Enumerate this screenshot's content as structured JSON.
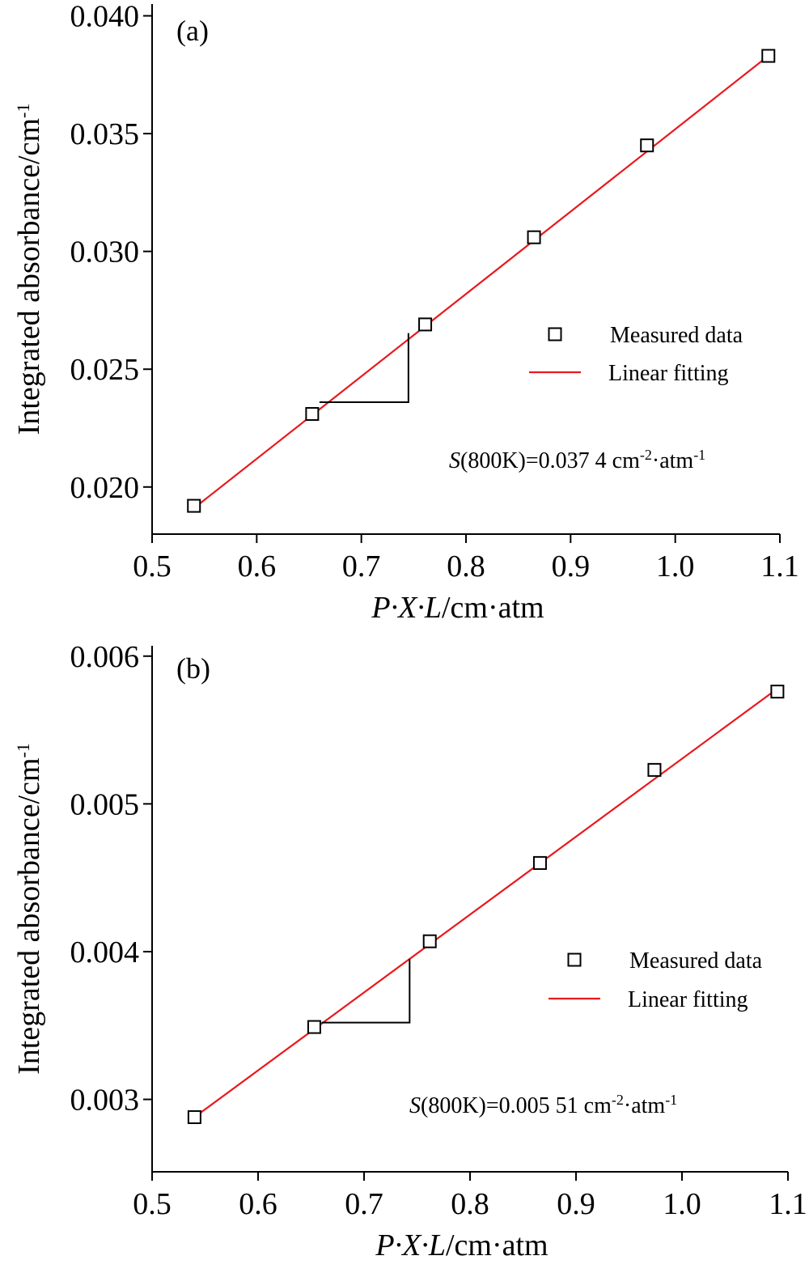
{
  "chart_data": [
    {
      "type": "scatter",
      "panel_label": "(a)",
      "xlabel": {
        "italic": "P·X·L",
        "unit": "/cm·atm"
      },
      "ylabel": {
        "text": "Integrated absorbance/cm",
        "sup": "-1"
      },
      "xlim": [
        0.5,
        1.1
      ],
      "ylim": [
        0.018,
        0.0405
      ],
      "xticks": [
        "0.5",
        "0.6",
        "0.7",
        "0.8",
        "0.9",
        "1.0",
        "1.1"
      ],
      "yticks": [
        "0.020",
        "0.025",
        "0.030",
        "0.035",
        "0.040"
      ],
      "series": [
        {
          "name": "Measured data",
          "marker": "open-square",
          "color": "#000000",
          "x": [
            0.54,
            0.653,
            0.761,
            0.865,
            0.973,
            1.089
          ],
          "y": [
            0.0192,
            0.0231,
            0.0269,
            0.0306,
            0.0345,
            0.0383
          ]
        },
        {
          "name": "Linear fitting",
          "type": "line",
          "color": "#e8191c",
          "x": [
            0.54,
            1.089
          ],
          "y": [
            0.0191,
            0.0383
          ]
        }
      ],
      "slope_triangle": {
        "x1": 0.66,
        "x2": 0.745,
        "y_low": 0.0236,
        "y_high": 0.02653
      },
      "annotation": {
        "italic": "S",
        "text1": "(800K)=0.037 4 cm",
        "sup1": "-2",
        "text2": "·atm",
        "sup2": "-1"
      },
      "legend": {
        "position": "right",
        "entries": [
          "Measured data",
          "Linear fitting"
        ]
      }
    },
    {
      "type": "scatter",
      "panel_label": "(b)",
      "xlabel": {
        "italic": "P·X·L",
        "unit": "/cm·atm"
      },
      "ylabel": {
        "text": "Integrated absorbance/cm",
        "sup": "-1"
      },
      "xlim": [
        0.5,
        1.1
      ],
      "ylim": [
        0.00251,
        0.00607
      ],
      "xticks": [
        "0.5",
        "0.6",
        "0.7",
        "0.8",
        "0.9",
        "1.0",
        "1.1"
      ],
      "yticks": [
        "0.003",
        "0.004",
        "0.005",
        "0.006"
      ],
      "series": [
        {
          "name": "Measured data",
          "marker": "open-square",
          "color": "#000000",
          "x": [
            0.54,
            0.653,
            0.762,
            0.866,
            0.974,
            1.09
          ],
          "y": [
            0.00288,
            0.00349,
            0.00407,
            0.0046,
            0.00523,
            0.00576
          ]
        },
        {
          "name": "Linear fitting",
          "type": "line",
          "color": "#e8191c",
          "x": [
            0.54,
            1.09
          ],
          "y": [
            0.00288,
            0.00578
          ]
        }
      ],
      "slope_triangle": {
        "x1": 0.66,
        "x2": 0.743,
        "y_low": 0.00352,
        "y_high": 0.00395
      },
      "annotation": {
        "italic": "S",
        "text1": "(800K)=0.005 51 cm",
        "sup1": "-2",
        "text2": "·atm",
        "sup2": "-1"
      },
      "legend": {
        "position": "right",
        "entries": [
          "Measured data",
          "Linear fitting"
        ]
      }
    }
  ]
}
